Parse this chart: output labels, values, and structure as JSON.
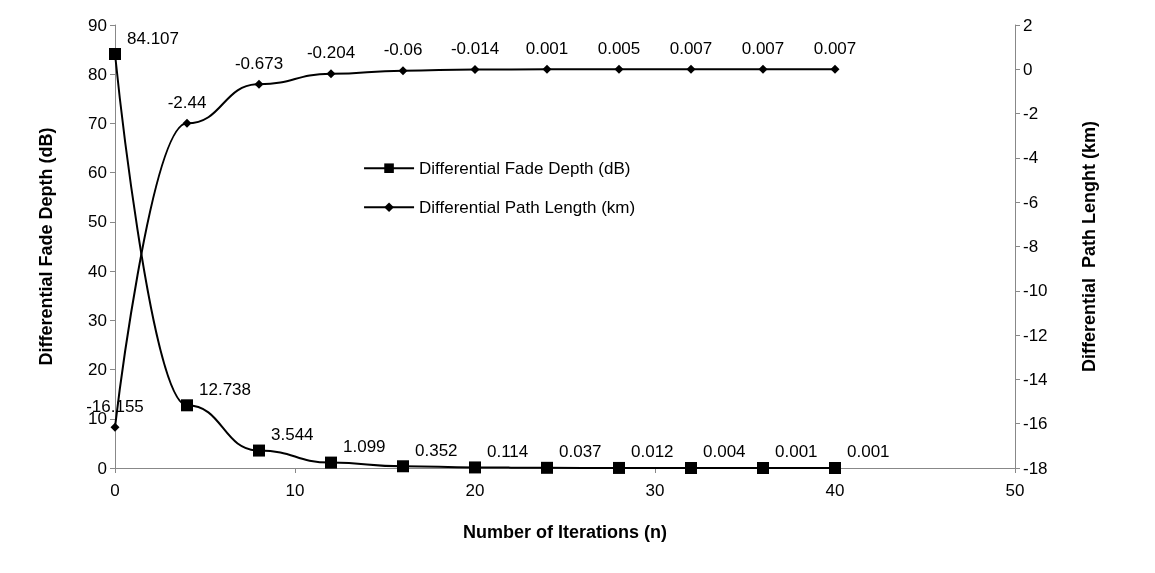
{
  "chart_data": {
    "type": "line",
    "xlabel": "Number of Iterations (n)",
    "ylabel": "Differential Fade Depth (dB)",
    "y2label": "Differential  Path Lenght (km)",
    "x": [
      0,
      4,
      8,
      12,
      16,
      20,
      24,
      28,
      32,
      36,
      40
    ],
    "series": [
      {
        "name": "Differential Fade Depth (dB)",
        "color": "#000000",
        "marker": "square",
        "values": [
          84.107,
          12.738,
          3.544,
          1.099,
          0.352,
          0.114,
          0.037,
          0.012,
          0.004,
          0.001,
          0.001
        ]
      },
      {
        "name": "Differential Path Length (km)",
        "color": "#000000",
        "marker": "diamond",
        "axis": "y2",
        "values": [
          -16.155,
          -2.44,
          -0.673,
          -0.204,
          -0.06,
          -0.014,
          0.001,
          0.005,
          0.007,
          0.007,
          0.007
        ]
      }
    ],
    "xlim": [
      0,
      50
    ],
    "xticks": [
      0,
      10,
      20,
      30,
      40,
      50
    ],
    "ylim": [
      0,
      90
    ],
    "yticks": [
      0,
      10,
      20,
      30,
      40,
      50,
      60,
      70,
      80,
      90
    ],
    "y2lim": [
      -18,
      2
    ],
    "y2ticks": [
      -18,
      -16,
      -14,
      -12,
      -10,
      -8,
      -6,
      -4,
      -2,
      0,
      2
    ],
    "data_labels": true,
    "grid": false,
    "legend": "top"
  }
}
